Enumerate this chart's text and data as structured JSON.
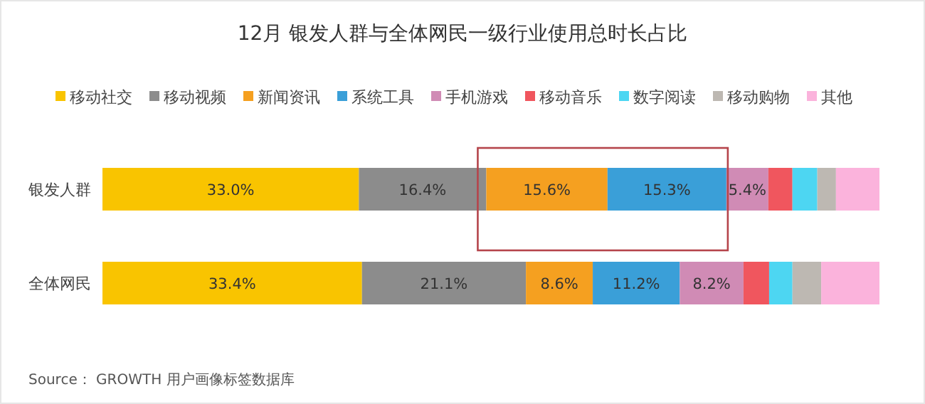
{
  "chart_data": {
    "type": "bar",
    "orientation": "horizontal",
    "stacked": true,
    "title": "12月 银发人群与全体网民一级行业使用总时长占比",
    "categories": [
      "银发人群",
      "全体网民"
    ],
    "xlim": [
      0,
      100
    ],
    "tick_labels": "y",
    "legend": "top",
    "series": [
      {
        "name": "移动社交",
        "color": "#f9c400",
        "values": [
          33.0,
          33.4
        ],
        "value_labels": [
          "33.0%",
          "33.4%"
        ]
      },
      {
        "name": "移动视频",
        "color": "#8c8c8c",
        "values": [
          16.4,
          21.1
        ],
        "value_labels": [
          "16.4%",
          "21.1%"
        ]
      },
      {
        "name": "新闻资讯",
        "color": "#f5a020",
        "values": [
          15.6,
          8.6
        ],
        "value_labels": [
          "15.6%",
          "8.6%"
        ]
      },
      {
        "name": "系统工具",
        "color": "#3a9fd8",
        "values": [
          15.3,
          11.2
        ],
        "value_labels": [
          "15.3%",
          "11.2%"
        ]
      },
      {
        "name": "手机游戏",
        "color": "#d08bb5",
        "values": [
          5.4,
          8.2
        ],
        "value_labels": [
          "5.4%",
          "8.2%"
        ]
      },
      {
        "name": "移动音乐",
        "color": "#f0565e",
        "values": [
          3.1,
          3.3
        ],
        "value_labels": [
          null,
          null
        ]
      },
      {
        "name": "数字阅读",
        "color": "#4dd6f2",
        "values": [
          3.2,
          3.0
        ],
        "value_labels": [
          null,
          null
        ]
      },
      {
        "name": "移动购物",
        "color": "#bdb8b2",
        "values": [
          2.4,
          3.7
        ],
        "value_labels": [
          null,
          null
        ]
      },
      {
        "name": "其他",
        "color": "#fbb3dc",
        "values": [
          5.6,
          7.5
        ],
        "value_labels": [
          null,
          null
        ]
      }
    ],
    "annotations": [
      "Source： GROWTH 用户画像标签数据库"
    ]
  }
}
